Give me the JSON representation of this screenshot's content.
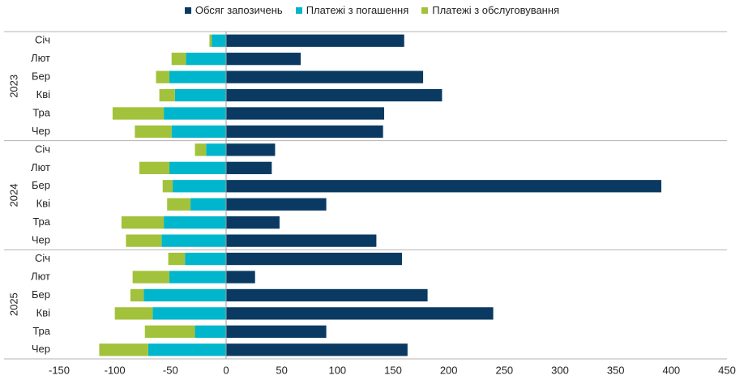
{
  "colors": {
    "borrowing": "#0a3a61",
    "repayment": "#00b6cc",
    "servicing": "#a2c23b",
    "grid": "#b3b3b3",
    "axis": "#9c9c9c"
  },
  "chart_data": {
    "type": "bar",
    "orientation": "horizontal",
    "stacked": true,
    "title": "",
    "xlabel": "",
    "ylabel": "",
    "xlim": [
      -150,
      450
    ],
    "x_ticks": [
      -150,
      -100,
      -50,
      0,
      50,
      100,
      150,
      200,
      250,
      300,
      350,
      400,
      450
    ],
    "legend_position": "top-center",
    "groups": [
      {
        "label": "2023",
        "categories": [
          "Січ",
          "Лют",
          "Бер",
          "Кві",
          "Тра",
          "Чер"
        ]
      },
      {
        "label": "2024",
        "categories": [
          "Січ",
          "Лют",
          "Бер",
          "Кві",
          "Тра",
          "Чер"
        ]
      },
      {
        "label": "2025",
        "categories": [
          "Січ",
          "Лют",
          "Бер",
          "Кві",
          "Тра",
          "Чер"
        ]
      }
    ],
    "series": [
      {
        "name": "Обсяг запозичень",
        "color_key": "borrowing",
        "values": [
          160,
          67,
          177,
          194,
          142,
          141,
          44,
          41,
          391,
          90,
          48,
          135,
          158,
          26,
          181,
          240,
          90,
          163
        ]
      },
      {
        "name": "Платежі з погашення",
        "color_key": "repayment",
        "values": [
          -13,
          -36,
          -51,
          -46,
          -56,
          -49,
          -18,
          -51,
          -48,
          -32,
          -56,
          -58,
          -37,
          -51,
          -74,
          -66,
          -28,
          -70
        ]
      },
      {
        "name": "Платежі з обслуговування",
        "color_key": "servicing",
        "values": [
          -2,
          -13,
          -12,
          -14,
          -46,
          -33,
          -10,
          -27,
          -9,
          -21,
          -38,
          -32,
          -15,
          -33,
          -12,
          -34,
          -45,
          -44
        ]
      }
    ]
  }
}
